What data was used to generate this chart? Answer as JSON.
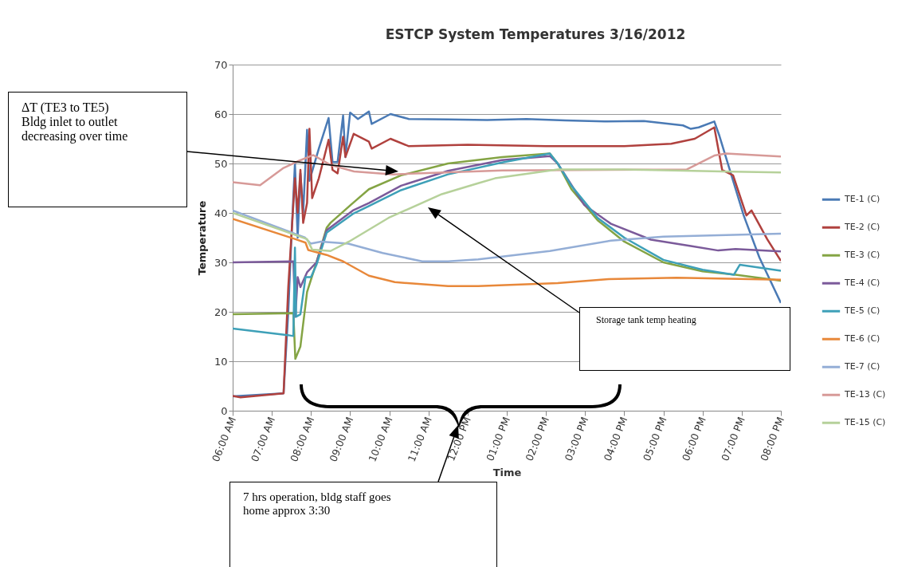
{
  "chart_data": {
    "type": "line",
    "title": "ESTCP System Temperatures  3/16/2012",
    "xlabel": "Time",
    "ylabel": "Temperature",
    "xlim": [
      6,
      20
    ],
    "xticks": [
      {
        "value": 6,
        "label": "06:00 AM"
      },
      {
        "value": 7,
        "label": "07:00 AM"
      },
      {
        "value": 8,
        "label": "08:00 AM"
      },
      {
        "value": 9,
        "label": "09:00 AM"
      },
      {
        "value": 10,
        "label": "10:00 AM"
      },
      {
        "value": 11,
        "label": "11:00 AM"
      },
      {
        "value": 12,
        "label": "12:00 PM"
      },
      {
        "value": 13,
        "label": "01:00 PM"
      },
      {
        "value": 14,
        "label": "02:00 PM"
      },
      {
        "value": 15,
        "label": "03:00 PM"
      },
      {
        "value": 16,
        "label": "04:00 PM"
      },
      {
        "value": 17,
        "label": "05:00 PM"
      },
      {
        "value": 18,
        "label": "06:00 PM"
      },
      {
        "value": 19,
        "label": "07:00 PM"
      },
      {
        "value": 20,
        "label": "08:00 PM"
      }
    ],
    "ylim": [
      0,
      70
    ],
    "yticks": [
      0,
      10,
      20,
      30,
      40,
      50,
      60,
      70
    ],
    "grid": "y",
    "legend": "right",
    "series": [
      {
        "name": "TE-1 (C)",
        "color": "#4a7ab5",
        "x": [
          6,
          7.3,
          7.42,
          7.5,
          7.59,
          7.66,
          7.73,
          7.8,
          7.9,
          7.96,
          8.2,
          8.45,
          8.55,
          8.68,
          8.82,
          8.88,
          9.0,
          9.2,
          9.48,
          9.55,
          10.03,
          10.5,
          11.5,
          12.5,
          13.5,
          14.5,
          15.5,
          16.5,
          17.5,
          17.7,
          17.9,
          18.3,
          18.43,
          19.05,
          19.45,
          20
        ],
        "values": [
          2.9,
          3.5,
          20,
          35,
          50,
          35,
          48,
          40,
          56.8,
          46.5,
          53,
          59.2,
          50.3,
          50.3,
          59.7,
          51.3,
          60.3,
          59,
          60.5,
          58,
          60,
          59,
          58.9,
          58.8,
          59,
          58.7,
          58.5,
          58.6,
          57.7,
          57,
          57.3,
          58.5,
          55.6,
          39.5,
          31,
          21.8
        ]
      },
      {
        "name": "TE-2 (C)",
        "color": "#b0413e",
        "x": [
          6,
          6.2,
          7.3,
          7.42,
          7.59,
          7.66,
          7.73,
          7.8,
          7.9,
          7.96,
          8.03,
          8.2,
          8.45,
          8.55,
          8.68,
          8.82,
          8.88,
          9.09,
          9.48,
          9.55,
          10.03,
          10.5,
          12,
          14,
          16,
          17.2,
          17.8,
          18.3,
          18.5,
          18.78,
          19.12,
          19.25,
          19.65,
          20
        ],
        "values": [
          3,
          2.7,
          3.5,
          25,
          47,
          40,
          48.7,
          38,
          42,
          57,
          43,
          47,
          54.8,
          48.7,
          48,
          55.4,
          51.3,
          56,
          54.4,
          53,
          55,
          53.5,
          53.8,
          53.5,
          53.5,
          54,
          55,
          57.3,
          48.7,
          47.6,
          39.5,
          40.5,
          34.7,
          30.3
        ]
      },
      {
        "name": "TE-3 (C)",
        "color": "#84a444",
        "x": [
          6,
          7.55,
          7.6,
          7.73,
          7.9,
          8.14,
          8.4,
          8.5,
          9.07,
          9.48,
          10.3,
          11.5,
          12.88,
          14.1,
          14.3,
          14.65,
          15.32,
          16,
          17,
          18,
          18.84,
          20
        ],
        "values": [
          19.5,
          19.7,
          10.5,
          13,
          24,
          30,
          37,
          38,
          42,
          44.8,
          47.6,
          50,
          51.3,
          52,
          50,
          44.8,
          38.5,
          34.2,
          30,
          28.2,
          27.5,
          26.3
        ]
      },
      {
        "name": "TE-4 (C)",
        "color": "#7b5a9a",
        "x": [
          6,
          7.55,
          7.6,
          7.66,
          7.73,
          7.9,
          8.14,
          8.4,
          9.07,
          9.48,
          10.3,
          11.5,
          12.88,
          14.1,
          14.3,
          14.98,
          15.66,
          16.68,
          17.7,
          18.4,
          18.84,
          20
        ],
        "values": [
          30,
          30.2,
          19,
          27,
          25,
          28,
          30,
          36.5,
          40.5,
          42,
          45.5,
          48.5,
          50.7,
          51.5,
          50,
          41.6,
          37.8,
          34.6,
          33.3,
          32.4,
          32.7,
          32.2
        ]
      },
      {
        "name": "TE-5 (C)",
        "color": "#3ea0b8",
        "x": [
          6,
          7.4,
          7.55,
          7.59,
          7.62,
          7.73,
          7.86,
          8.0,
          8.14,
          8.4,
          9.07,
          9.48,
          10.3,
          11.5,
          12.88,
          14.1,
          14.3,
          14.65,
          15.32,
          16,
          17,
          18,
          18.8,
          18.95,
          20
        ],
        "values": [
          16.6,
          15.3,
          15.1,
          33,
          19,
          19.5,
          27,
          27,
          29.5,
          36,
          39.8,
          41.4,
          44.6,
          47.8,
          50.2,
          52,
          50,
          45.5,
          39,
          35,
          30.5,
          28.5,
          27.5,
          29.5,
          28.3
        ]
      },
      {
        "name": "TE-6 (C)",
        "color": "#e8883a",
        "x": [
          6,
          7.6,
          7.86,
          7.93,
          8.4,
          8.82,
          9.48,
          10.14,
          11.5,
          12.27,
          14.3,
          15.6,
          17.34,
          20
        ],
        "values": [
          38.8,
          34.7,
          34,
          32.5,
          31.5,
          30.2,
          27.3,
          26,
          25.2,
          25.2,
          25.8,
          26.6,
          26.9,
          26.5
        ]
      },
      {
        "name": "TE-7 (C)",
        "color": "#94aed6",
        "x": [
          6,
          7.85,
          7.99,
          8.26,
          8.95,
          9.83,
          10.84,
          11.5,
          12.27,
          14.1,
          15.66,
          17,
          20
        ],
        "values": [
          40.5,
          35,
          33.8,
          34.2,
          33.8,
          31.9,
          30.2,
          30.2,
          30.6,
          32.3,
          34.4,
          35.2,
          35.8
        ]
      },
      {
        "name": "TE-13 (C)",
        "color": "#d79a98",
        "x": [
          6,
          6.7,
          7.3,
          7.65,
          8.06,
          8.5,
          9.1,
          10.1,
          12.88,
          17.6,
          18.3,
          18.6,
          20
        ],
        "values": [
          46.2,
          45.6,
          49.1,
          50.4,
          51.7,
          49.7,
          48.4,
          47.8,
          48.6,
          48.8,
          51.6,
          52,
          51.4
        ]
      },
      {
        "name": "TE-15 (C)",
        "color": "#b6d19a",
        "x": [
          6,
          7.9,
          8.03,
          8.5,
          8.97,
          9.98,
          11.34,
          12.27,
          12.7,
          14.3,
          16,
          18.5,
          20
        ],
        "values": [
          40,
          34.7,
          32.6,
          32.3,
          34.2,
          39,
          43.8,
          46,
          47,
          48.8,
          48.8,
          48.4,
          48.2
        ]
      }
    ],
    "annotations": [
      "ΔT (TE3 to TE5)\nBldg inlet to outlet\ndecreasing over time",
      "Storage tank temp heating",
      "7 hrs operation, bldg staff goes\nhome approx  3:30"
    ]
  }
}
